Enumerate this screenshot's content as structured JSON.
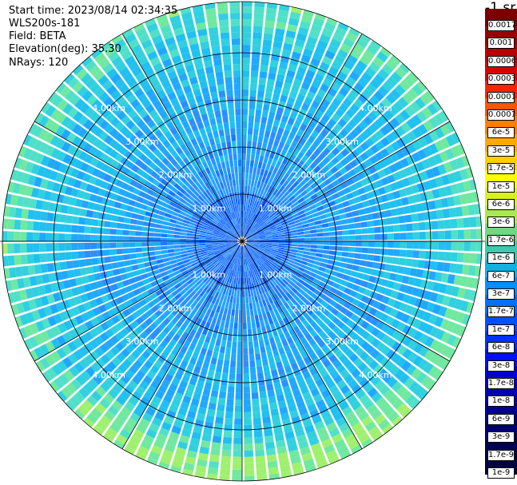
{
  "header": {
    "start_time": "Start time: 2023/08/14 02:34:35",
    "instrument": "WLS200s-181",
    "field": "Field: BETA",
    "elevation": "Elevation(deg): 35.30",
    "nrays": "NRays: 120"
  },
  "scale": {
    "title": "-1 sr",
    "labels": [
      "0.0017",
      "0.001",
      "0.0006",
      "0.0003",
      "0.00017",
      "0.0001",
      "6e-5",
      "3e-5",
      "1.7e-5",
      "1e-5",
      "6e-6",
      "3e-6",
      "1.7e-6",
      "1e-6",
      "6e-7",
      "3e-7",
      "1.7e-7",
      "1e-7",
      "6e-8",
      "3e-8",
      "1.7e-8",
      "1e-8",
      "6e-9",
      "3e-9",
      "1.7e-9",
      "1e-9"
    ],
    "colors": [
      "#7a0000",
      "#990000",
      "#b80000",
      "#d80000",
      "#ff2200",
      "#ff5500",
      "#ff8000",
      "#ffa800",
      "#ffd000",
      "#ffff00",
      "#d8f020",
      "#a8e850",
      "#70d880",
      "#40c8b0",
      "#10b0e0",
      "#0090ff",
      "#0070ff",
      "#0050ff",
      "#0030ff",
      "#0010f0",
      "#0000d0",
      "#0000b0",
      "#000090",
      "#000070",
      "#000050",
      "#000040"
    ]
  },
  "range_rings": {
    "labels": [
      "1.00km",
      "2.00km",
      "3.00km",
      "4.00km"
    ]
  }
}
